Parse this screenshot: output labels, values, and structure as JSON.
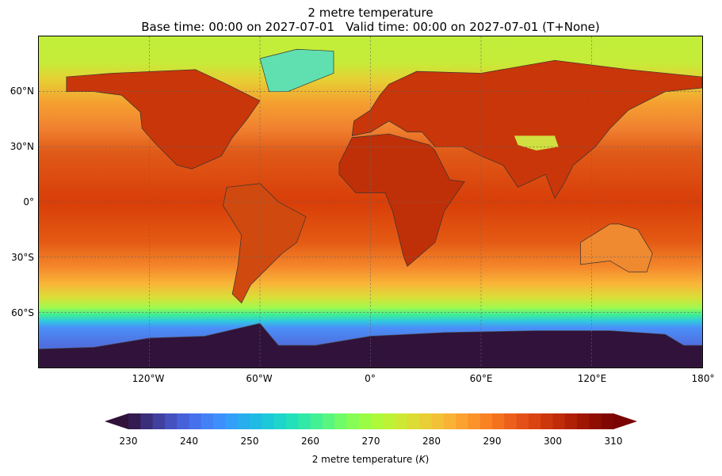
{
  "title": "2 metre temperature",
  "subtitle": "Base time: 00:00 on 2027-07-01   Valid time: 00:00 on 2027-07-01 (T+None)",
  "map": {
    "projection": "plate carree",
    "lat_labels": [
      "60°N",
      "30°N",
      "0°",
      "30°S",
      "60°S"
    ],
    "lon_labels": [
      "120°W",
      "60°W",
      "0°",
      "60°E",
      "120°E",
      "180°"
    ],
    "gridlines": true
  },
  "colorbar": {
    "label": "2 metre temperature (K)",
    "label_text": "2 metre temperature (",
    "label_unit": "K",
    "label_close": ")",
    "ticks": [
      "230",
      "240",
      "250",
      "260",
      "270",
      "280",
      "290",
      "300",
      "310"
    ],
    "min": 230,
    "max": 310,
    "step": 2,
    "extend": "both",
    "colormap": "turbo"
  },
  "colors": {
    "polar": "#30123b",
    "land_hot": "#c03008",
    "ocean_tropics": "#d83e08"
  }
}
